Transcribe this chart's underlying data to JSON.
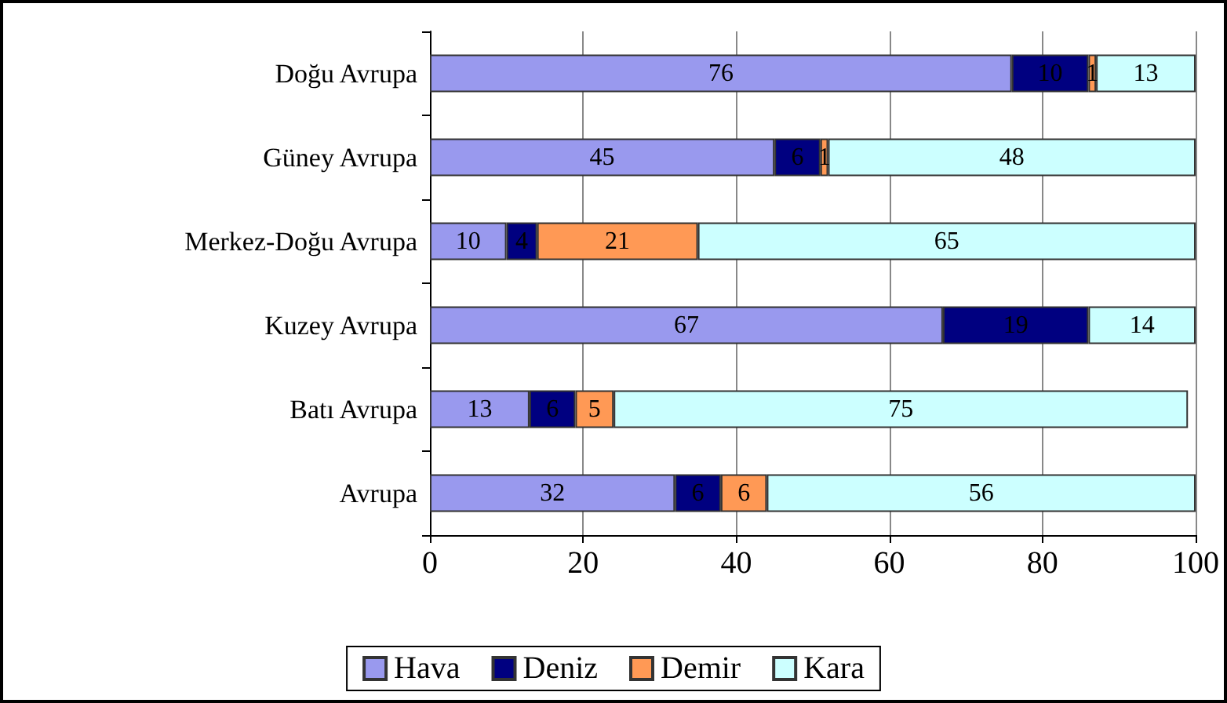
{
  "chart_data": {
    "type": "bar",
    "orientation": "horizontal",
    "stacked": true,
    "data_labels": true,
    "grid": "x",
    "legend": "bottom",
    "categories": [
      "Doğu Avrupa",
      "Güney Avrupa",
      "Merkez-Doğu Avrupa",
      "Kuzey Avrupa",
      "Batı Avrupa",
      "Avrupa"
    ],
    "xlim": [
      0,
      100
    ],
    "xticks": [
      0,
      20,
      40,
      60,
      80,
      100
    ],
    "series": [
      {
        "name": "Hava",
        "color": "#9999ee",
        "values": [
          76,
          45,
          10,
          67,
          13,
          32
        ]
      },
      {
        "name": "Deniz",
        "color": "#000080",
        "values": [
          10,
          6,
          4,
          19,
          6,
          6
        ]
      },
      {
        "name": "Demir",
        "color": "#ff9955",
        "values": [
          1,
          1,
          21,
          null,
          5,
          6
        ]
      },
      {
        "name": "Kara",
        "color": "#ccffff",
        "values": [
          13,
          48,
          65,
          14,
          75,
          56
        ]
      }
    ]
  }
}
